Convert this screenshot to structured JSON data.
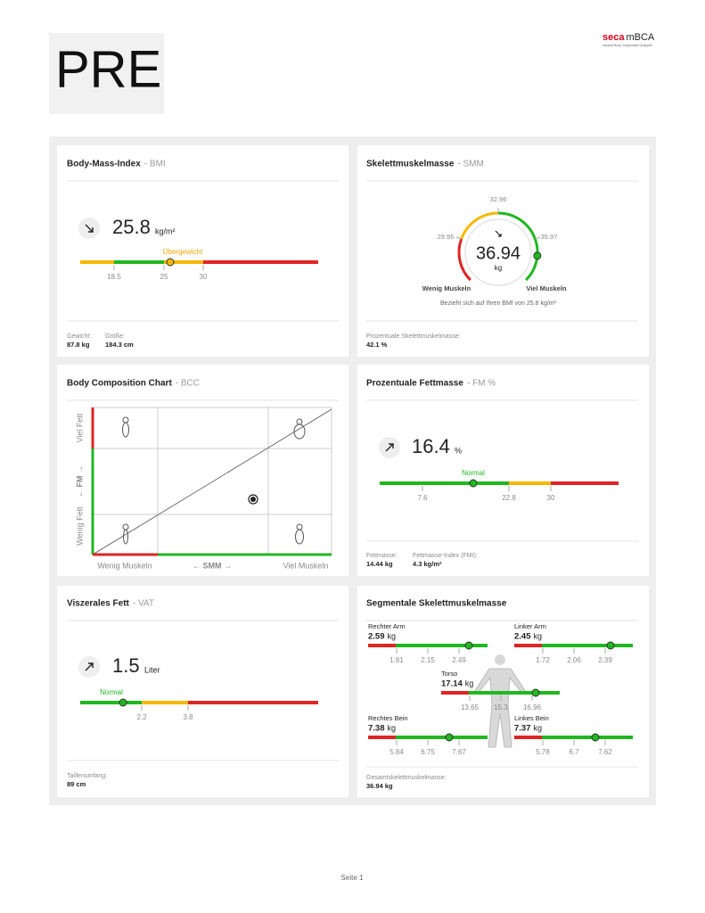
{
  "header": {
    "logo": "PRE",
    "brand": "seca",
    "product": "mBCA",
    "tagline": "medical Body Composition Analyzer"
  },
  "cards": [
    {
      "title": "Body-Mass-Index",
      "abbr": "- BMI",
      "value": 25.8,
      "unit": "kg/m²",
      "marker_label": "Übergewicht",
      "ticks": [
        18.5,
        25,
        30
      ],
      "footer": [
        {
          "label": "Gewicht:",
          "value": "87.8 kg"
        },
        {
          "label": "Größe:",
          "value": "184.3 cm"
        }
      ]
    },
    {
      "title": "Skelettmuskelmasse",
      "abbr": "- SMM",
      "value": 36.94,
      "unit": "kg",
      "ticks": [
        29.95,
        32.96,
        35.97
      ],
      "left_label": "Wenig Muskeln",
      "right_label": "Viel Muskeln",
      "note": "Bezieht sich auf Ihren BMI von 25.8 kg/m²",
      "footer": [
        {
          "label": "Prozentuale Skelettmuskelmasse:",
          "value": "42.1 %"
        }
      ]
    },
    {
      "title": "Body Composition Chart",
      "abbr": "- BCC",
      "y_high": "Viel Fett",
      "y_axis": "← FM →",
      "y_low": "Wenig Fett",
      "x_low": "Wenig Muskeln",
      "x_axis": "← SMM →",
      "x_high": "Viel Muskeln"
    },
    {
      "title": "Prozentuale Fettmasse",
      "abbr": "- FM %",
      "value": 16.4,
      "unit": "%",
      "marker_label": "Normal",
      "ticks": [
        7.6,
        22.8,
        30
      ],
      "footer": [
        {
          "label": "Fettmasse:",
          "value": "14.44 kg"
        },
        {
          "label": "Fettmasse-Index (FMI):",
          "value": "4.3 kg/m²"
        }
      ]
    },
    {
      "title": "Viszerales Fett",
      "abbr": "- VAT",
      "value": 1.5,
      "unit": "Liter",
      "marker_label": "Normal",
      "ticks": [
        2.2,
        3.8
      ],
      "footer": [
        {
          "label": "Taillenumfang:",
          "value": "89 cm"
        }
      ]
    },
    {
      "title": "Segmentale Skelettmuskelmasse",
      "segments": [
        {
          "name": "Rechter Arm",
          "value": 2.59,
          "unit": "kg",
          "ticks": [
            1.81,
            2.15,
            2.49
          ]
        },
        {
          "name": "Linker Arm",
          "value": 2.45,
          "unit": "kg",
          "ticks": [
            1.72,
            2.06,
            2.39
          ]
        },
        {
          "name": "Torso",
          "value": 17.14,
          "unit": "kg",
          "ticks": [
            13.65,
            15.3,
            16.96
          ]
        },
        {
          "name": "Rechtes Bein",
          "value": 7.38,
          "unit": "kg",
          "ticks": [
            5.84,
            6.75,
            7.67
          ]
        },
        {
          "name": "Linkes Bein",
          "value": 7.37,
          "unit": "kg",
          "ticks": [
            5.78,
            6.7,
            7.62
          ]
        }
      ],
      "footer": [
        {
          "label": "Gesamtskelettmuskelmasse:",
          "value": "36.94 kg"
        }
      ]
    }
  ],
  "footer": {
    "page": "Seite 1"
  }
}
